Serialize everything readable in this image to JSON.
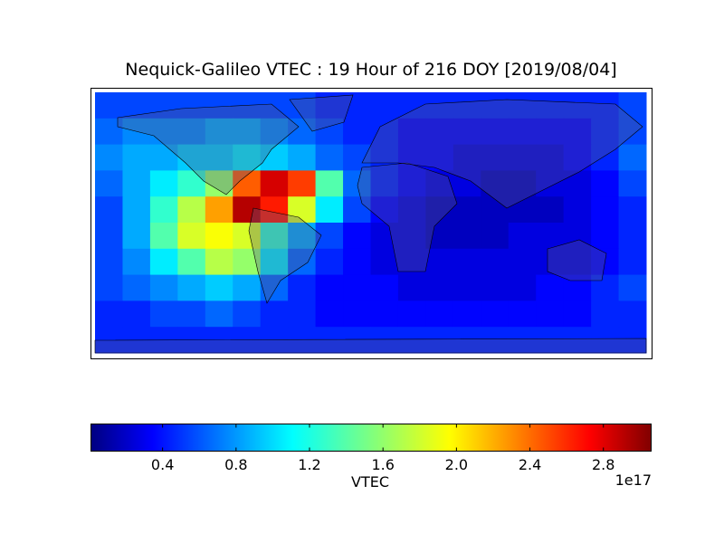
{
  "chart_data": {
    "type": "heatmap",
    "title": "Nequick-Galileo VTEC : 19 Hour of 216 DOY [2019/08/04]",
    "colormap": "jet",
    "values": [
      [
        0.6,
        0.6,
        0.6,
        0.6,
        0.6,
        0.6,
        0.6,
        0.6,
        0.5,
        0.5,
        0.5,
        0.5,
        0.5,
        0.5,
        0.5,
        0.5,
        0.5,
        0.5,
        0.5,
        0.6
      ],
      [
        0.7,
        0.8,
        0.8,
        0.8,
        0.9,
        0.9,
        0.8,
        0.7,
        0.6,
        0.5,
        0.5,
        0.4,
        0.4,
        0.4,
        0.4,
        0.4,
        0.4,
        0.4,
        0.5,
        0.6
      ],
      [
        0.8,
        0.9,
        0.9,
        1.0,
        1.0,
        1.1,
        1.0,
        0.9,
        0.7,
        0.6,
        0.5,
        0.4,
        0.4,
        0.3,
        0.3,
        0.3,
        0.3,
        0.4,
        0.5,
        0.7
      ],
      [
        0.7,
        0.9,
        1.1,
        1.3,
        1.6,
        2.4,
        2.8,
        2.5,
        1.4,
        0.7,
        0.5,
        0.4,
        0.3,
        0.3,
        0.2,
        0.2,
        0.3,
        0.3,
        0.4,
        0.6
      ],
      [
        0.6,
        0.9,
        1.3,
        1.7,
        2.2,
        2.9,
        2.6,
        1.8,
        1.1,
        0.6,
        0.4,
        0.3,
        0.2,
        0.2,
        0.2,
        0.2,
        0.2,
        0.3,
        0.4,
        0.5
      ],
      [
        0.6,
        0.9,
        1.4,
        1.8,
        1.9,
        1.8,
        1.3,
        0.9,
        0.6,
        0.4,
        0.3,
        0.3,
        0.2,
        0.2,
        0.2,
        0.3,
        0.3,
        0.3,
        0.4,
        0.5
      ],
      [
        0.6,
        0.8,
        1.1,
        1.4,
        1.7,
        1.6,
        1.1,
        0.7,
        0.5,
        0.4,
        0.3,
        0.3,
        0.3,
        0.3,
        0.3,
        0.3,
        0.3,
        0.3,
        0.4,
        0.5
      ],
      [
        0.6,
        0.7,
        0.8,
        0.9,
        1.0,
        0.9,
        0.7,
        0.5,
        0.4,
        0.4,
        0.4,
        0.3,
        0.3,
        0.3,
        0.3,
        0.3,
        0.4,
        0.4,
        0.5,
        0.6
      ],
      [
        0.5,
        0.5,
        0.6,
        0.6,
        0.7,
        0.6,
        0.5,
        0.5,
        0.4,
        0.4,
        0.4,
        0.4,
        0.4,
        0.4,
        0.4,
        0.4,
        0.4,
        0.4,
        0.5,
        0.5
      ],
      [
        0.5,
        0.5,
        0.5,
        0.5,
        0.5,
        0.5,
        0.5,
        0.5,
        0.5,
        0.5,
        0.5,
        0.5,
        0.5,
        0.5,
        0.5,
        0.5,
        0.5,
        0.5,
        0.5,
        0.5
      ]
    ],
    "colorbar": {
      "label": "VTEC",
      "offset": "1e17",
      "clim": [
        0.01,
        3.06
      ],
      "ticks": [
        0.4,
        0.8,
        1.2,
        1.6,
        {
          "value": 2,
          "label": "2.0"
        },
        2.4,
        2.8
      ]
    }
  }
}
